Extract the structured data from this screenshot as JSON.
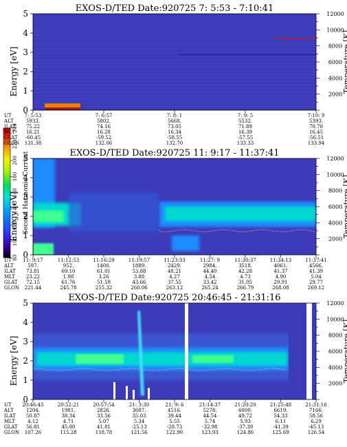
{
  "chart_data": [
    {
      "type": "heatmap",
      "title": "EXOS-D/TED   Date:920725   7: 5:53 - 7:10:41",
      "ylabel": "Energy [eV]",
      "y2label": "Temperature [K]",
      "ylim": [
        0,
        5
      ],
      "y2lim": [
        0,
        12000
      ],
      "yticks": [
        "0",
        "1",
        "2",
        "3",
        "4",
        "5"
      ],
      "y2ticks": [
        "2000",
        "4000",
        "6000",
        "8000",
        "10000",
        "12000"
      ],
      "table": {
        "row_labels": [
          "UT",
          "ALT",
          "ILAT",
          "MLT",
          "GLAT",
          "GLON"
        ],
        "columns": [
          [
            "7: 5:53",
            "5933.",
            "75.22",
            "16.21",
            "-60.45",
            "131.38"
          ],
          [
            "7: 6:57",
            "5802.",
            "74.16",
            "16.28",
            "-59.52",
            "132.06"
          ],
          [
            "7: 8: 1",
            "5668.",
            "73.05",
            "16.34",
            "-58.55",
            "132.70"
          ],
          [
            "7: 9: 5",
            "5532.",
            "71.89",
            "16.39",
            "-57.55",
            "133.33"
          ],
          [
            "7:10: 9",
            "5393.",
            "70.70",
            "16.45",
            "-56.51",
            "133.94"
          ]
        ]
      }
    },
    {
      "type": "heatmap",
      "title": "EXOS-D/TED   Date:920725   11: 9:17 - 11:37:41",
      "ylabel": "Energy [eV]",
      "y2label": "Temperature [K]",
      "ylim": [
        0,
        5
      ],
      "y2lim": [
        0,
        12000
      ],
      "yticks": [
        "0",
        "1",
        "2",
        "3",
        "4",
        "5"
      ],
      "y2ticks": [
        "2000",
        "4000",
        "6000",
        "8000",
        "10000",
        "12000"
      ],
      "table": {
        "row_labels": [
          "UT",
          "ALT",
          "ILAT",
          "MLT",
          "GLAT",
          "GLON"
        ],
        "columns": [
          [
            "11: 9:17",
            "597.",
            "73.81",
            "23.22",
            "72.15",
            "221.44"
          ],
          [
            "11:12:53",
            "952.",
            "69.10",
            "1.98",
            "61.76",
            "245.78"
          ],
          [
            "11:16:29",
            "1400.",
            "61.01",
            "3.26",
            "51.59",
            "255.32"
          ],
          [
            "11:19:57",
            "1889.",
            "53.88",
            "3.88",
            "43.66",
            "260.06"
          ],
          [
            "11:23:33",
            "2429.",
            "48.21",
            "4.27",
            "37.55",
            "263.12"
          ],
          [
            "11:27: 9",
            "2984.",
            "44.40",
            "4.54",
            "33.42",
            "265.24"
          ],
          [
            "11:30:37",
            "3518.",
            "42.28",
            "4.73",
            "31.05",
            "266.79"
          ],
          [
            "11:34:13",
            "4061.",
            "41.37",
            "4.90",
            "29.91",
            "268.08"
          ],
          [
            "11:37:41",
            "4566.",
            "41.39",
            "5.04",
            "29.77",
            "269.12"
          ]
        ]
      }
    },
    {
      "type": "heatmap",
      "title": "EXOS-D/TED   Date:920725   20:46:45 - 21:31:16",
      "ylabel": "Energy [eV]",
      "y2label": "Temperature [K]",
      "ylim": [
        0,
        5
      ],
      "y2lim": [
        0,
        12000
      ],
      "yticks": [
        "0",
        "1",
        "2",
        "3",
        "4",
        "5"
      ],
      "y2ticks": [
        "2000",
        "4000",
        "6000",
        "8000",
        "10000",
        "12000"
      ],
      "table": {
        "row_labels": [
          "UT",
          "ALT",
          "ILAT",
          "MLT",
          "GLAT",
          "GLON"
        ],
        "columns": [
          [
            "20:46:45",
            "1204.",
            "50.87",
            "4.12",
            "56.81",
            "107.26"
          ],
          [
            "20:52:21",
            "1981.",
            "38.34",
            "4.71",
            "45.80",
            "115.28"
          ],
          [
            "20:57:54",
            "2826.",
            "33.56",
            "5.07",
            "41.81",
            "118.78"
          ],
          [
            "21: 3:30",
            "3687.",
            "35.03",
            "5.34",
            "-25.13",
            "121.56"
          ],
          [
            "21: 9: 6",
            "4516.",
            "39.44",
            "5.55",
            "-28.73",
            "122.90"
          ],
          [
            "21:14:37",
            "5278.",
            "44.54",
            "5.74",
            "-32.98",
            "123.93"
          ],
          [
            "21:20:20",
            "6000.",
            "49.72",
            "5.93",
            "-37.39",
            "124.86"
          ],
          [
            "21:25:48",
            "6619.",
            "54.33",
            "6.11",
            "-41.39",
            "125.69"
          ],
          [
            "21:31:16",
            "7166.",
            "58.56",
            "6.29",
            "-45.13",
            "126.54"
          ]
        ]
      }
    }
  ],
  "colorbar": {
    "label": "Second Harmonic Current",
    "ticks": [
      "80",
      "100",
      "120",
      "140",
      "160",
      "180",
      "200",
      "220",
      "240"
    ],
    "range": [
      80,
      240
    ],
    "colors": [
      "#000000",
      "#3a00a0",
      "#2a3cff",
      "#0090ff",
      "#00e0e0",
      "#00e060",
      "#a0f000",
      "#f0f000",
      "#f09000",
      "#f02000",
      "#c00000"
    ]
  },
  "colors": {
    "background": "#3c3cba",
    "band_cyan": "#00d8d0",
    "band_green": "#40ff90",
    "band_blue": "#1f8cff",
    "temperature_dots": "#ffa0a0"
  }
}
